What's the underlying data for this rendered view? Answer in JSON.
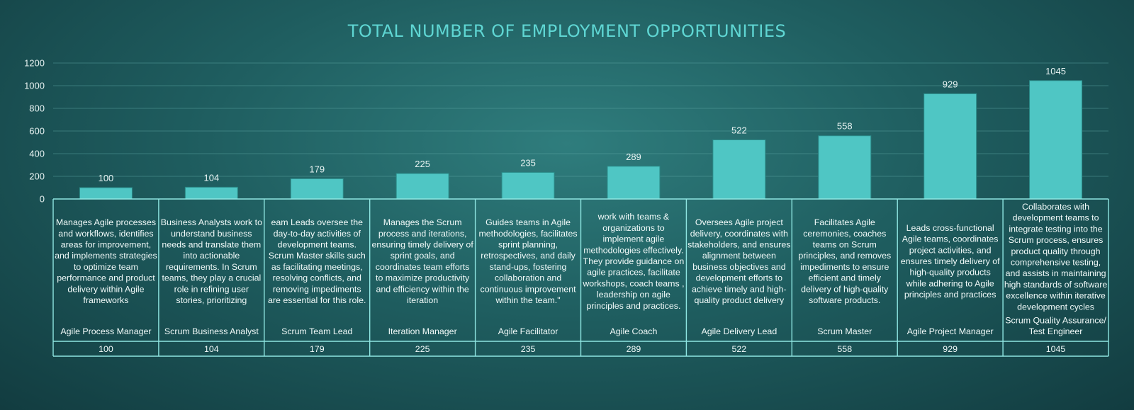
{
  "chart_data": {
    "type": "bar",
    "title": "TOTAL NUMBER OF EMPLOYMENT OPPORTUNITIES",
    "ylim": [
      0,
      1200
    ],
    "yticks": [
      0,
      200,
      400,
      600,
      800,
      1000,
      1200
    ],
    "grid": true,
    "bar_color": "#4fc6c4",
    "series": [
      {
        "values": [
          100,
          104,
          179,
          225,
          235,
          289,
          522,
          558,
          929,
          1045
        ]
      }
    ],
    "categories": [
      {
        "name": [
          "Agile Process Manager"
        ],
        "description": [
          "Manages Agile processes",
          "and workflows, identifies",
          "areas for improvement,",
          "and implements strategies",
          "to optimize team",
          "performance and product",
          "delivery within Agile",
          "frameworks"
        ]
      },
      {
        "name": [
          "Scrum Business Analyst"
        ],
        "description": [
          "Business Analysts work to",
          "understand business",
          "needs and translate them",
          "into actionable",
          "requirements. In Scrum",
          "teams, they play a crucial",
          "role in refining user",
          "stories, prioritizing"
        ]
      },
      {
        "name": [
          "Scrum Team Lead"
        ],
        "description": [
          "eam Leads oversee the",
          "day-to-day activities of",
          "development teams.",
          "Scrum Master skills such",
          "as facilitating meetings,",
          "resolving conflicts, and",
          "removing impediments",
          "are essential for this role."
        ]
      },
      {
        "name": [
          "Iteration Manager"
        ],
        "description": [
          "Manages the Scrum",
          "process and iterations,",
          "ensuring timely delivery of",
          "sprint goals, and",
          "coordinates team efforts",
          "to maximize productivity",
          "and efficiency within the",
          "iteration"
        ]
      },
      {
        "name": [
          "Agile Facilitator"
        ],
        "description": [
          "Guides teams in Agile",
          "methodologies, facilitates",
          "sprint planning,",
          "retrospectives, and daily",
          "stand-ups, fostering",
          "collaboration and",
          "continuous improvement",
          "within the team.\""
        ]
      },
      {
        "name": [
          "Agile Coach"
        ],
        "description": [
          "work with teams &",
          "organizations to",
          "implement agile",
          "methodologies effectively.",
          "They provide guidance on",
          "agile practices, facilitate",
          "workshops, coach teams ,",
          "leadership on agile",
          "principles and practices."
        ]
      },
      {
        "name": [
          "Agile Delivery Lead"
        ],
        "description": [
          "Oversees Agile project",
          "delivery, coordinates with",
          "stakeholders, and ensures",
          "alignment between",
          "business objectives and",
          "development efforts to",
          "achieve timely and high-",
          "quality product delivery"
        ]
      },
      {
        "name": [
          "Scrum Master"
        ],
        "description": [
          "Facilitates Agile",
          "ceremonies, coaches",
          "teams on Scrum",
          "principles, and removes",
          "impediments to ensure",
          "efficient and timely",
          "delivery of high-quality",
          "software products."
        ]
      },
      {
        "name": [
          "Agile Project Manager"
        ],
        "description": [
          "Leads cross-functional",
          "Agile teams, coordinates",
          "project activities, and",
          "ensures timely delivery of",
          "high-quality products",
          "while adhering to Agile",
          "principles and practices"
        ]
      },
      {
        "name": [
          "Scrum Quality Assurance/",
          "Test Engineer"
        ],
        "description": [
          "Collaborates with",
          "development teams to",
          "integrate testing into the",
          "Scrum process, ensures",
          "product quality through",
          "comprehensive testing,",
          "and assists in maintaining",
          "high standards of software",
          "excellence within iterative",
          "development cycles"
        ]
      }
    ],
    "table_values": [
      "100",
      "104",
      "179",
      "225",
      "235",
      "289",
      "522",
      "558",
      "929",
      "1045"
    ]
  }
}
